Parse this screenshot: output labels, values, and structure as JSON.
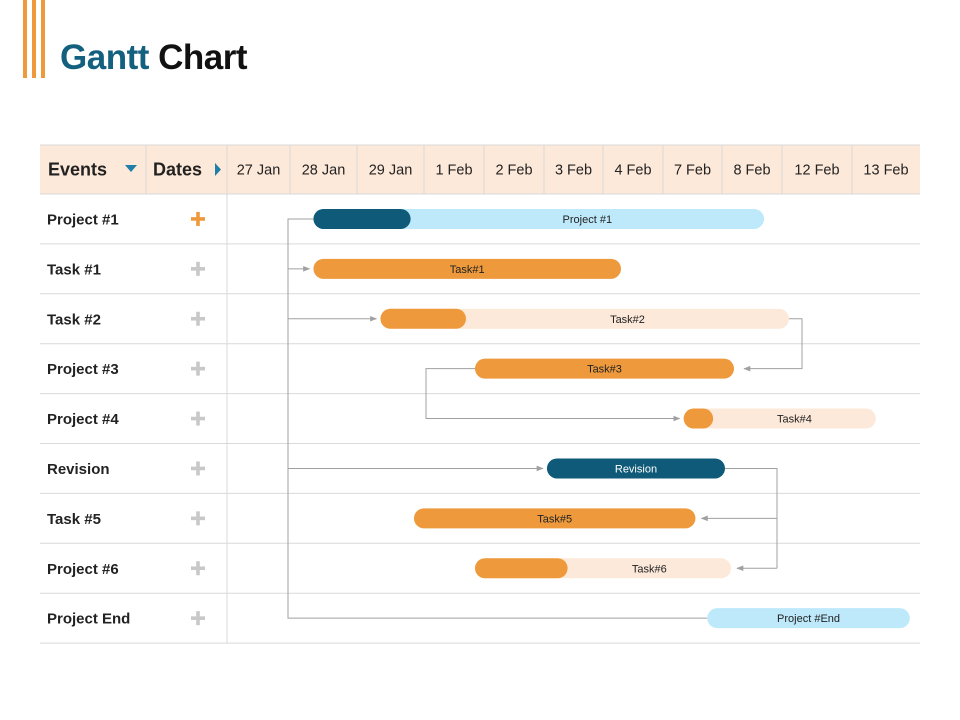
{
  "title": {
    "part1": "Gantt",
    "part2": "Chart"
  },
  "colors": {
    "header_bg": "#fde9d9",
    "teal_dark": "#0e5a78",
    "light_blue": "#bde9fb",
    "orange": "#ee9a3c",
    "peach": "#fde9d9",
    "plus_orange": "#ee9a3c",
    "plus_gray": "#c8c8c8",
    "grid": "#d9d9d9",
    "connector": "#a0a0a0",
    "text": "#222222"
  },
  "header": {
    "events_label": "Events",
    "dates_label": "Dates"
  },
  "chart_data": {
    "type": "gantt",
    "dates": [
      "27 Jan",
      "28 Jan",
      "29 Jan",
      "1 Feb",
      "2 Feb",
      "3 Feb",
      "4 Feb",
      "7 Feb",
      "8 Feb",
      "12 Feb",
      "13 Feb"
    ],
    "rows": [
      {
        "label": "Project #1",
        "plus": "orange",
        "bar": {
          "label": "Project #1",
          "start": 1.35,
          "end": 8.7,
          "progress_end": 2.8,
          "fill": "light_blue",
          "progress": "teal_dark",
          "text_color": "#222222"
        }
      },
      {
        "label": "Task #1",
        "plus": "gray",
        "bar": {
          "label": "Task#1",
          "start": 1.35,
          "end": 6.3,
          "progress_end": 6.3,
          "fill": "orange",
          "progress": "orange",
          "text_color": "#222222"
        }
      },
      {
        "label": "Task #2",
        "plus": "gray",
        "bar": {
          "label": "Task#2",
          "start": 2.35,
          "end": 9.1,
          "progress_end": 3.7,
          "fill": "peach",
          "progress": "orange",
          "text_color": "#222222"
        }
      },
      {
        "label": "Project #3",
        "plus": "gray",
        "bar": {
          "label": "Task#3",
          "start": 3.85,
          "end": 8.2,
          "progress_end": 8.2,
          "fill": "orange",
          "progress": "orange",
          "text_color": "#222222"
        }
      },
      {
        "label": "Project #4",
        "plus": "gray",
        "bar": {
          "label": "Task#4",
          "start": 7.35,
          "end": 10.35,
          "progress_end": 7.85,
          "fill": "peach",
          "progress": "orange",
          "text_color": "#222222"
        }
      },
      {
        "label": "Revision",
        "plus": "gray",
        "bar": {
          "label": "Revision",
          "start": 5.05,
          "end": 8.05,
          "progress_end": 8.05,
          "fill": "teal_dark",
          "progress": "teal_dark",
          "text_color": "#ffffff"
        }
      },
      {
        "label": "Task #5",
        "plus": "gray",
        "bar": {
          "label": "Task#5",
          "start": 2.85,
          "end": 7.55,
          "progress_end": 7.55,
          "fill": "orange",
          "progress": "orange",
          "text_color": "#222222"
        }
      },
      {
        "label": "Project #6",
        "plus": "gray",
        "bar": {
          "label": "Task#6",
          "start": 3.85,
          "end": 8.15,
          "progress_end": 5.4,
          "fill": "peach",
          "progress": "orange",
          "text_color": "#222222"
        }
      },
      {
        "label": "Project End",
        "plus": "gray",
        "bar": {
          "label": "Project #End",
          "start": 7.75,
          "end": 10.85,
          "progress_end": 7.75,
          "fill": "light_blue",
          "progress": "light_blue",
          "text_color": "#222222"
        }
      }
    ],
    "dependencies": [
      {
        "from": 0,
        "to": 1
      },
      {
        "from": 0,
        "to": 2
      },
      {
        "from": 0,
        "to": 5
      },
      {
        "from": 0,
        "to": 8
      },
      {
        "from": 2,
        "to": 3
      },
      {
        "from": 3,
        "to": 4
      },
      {
        "from": 5,
        "to": 6
      },
      {
        "from": 5,
        "to": 7
      }
    ]
  }
}
